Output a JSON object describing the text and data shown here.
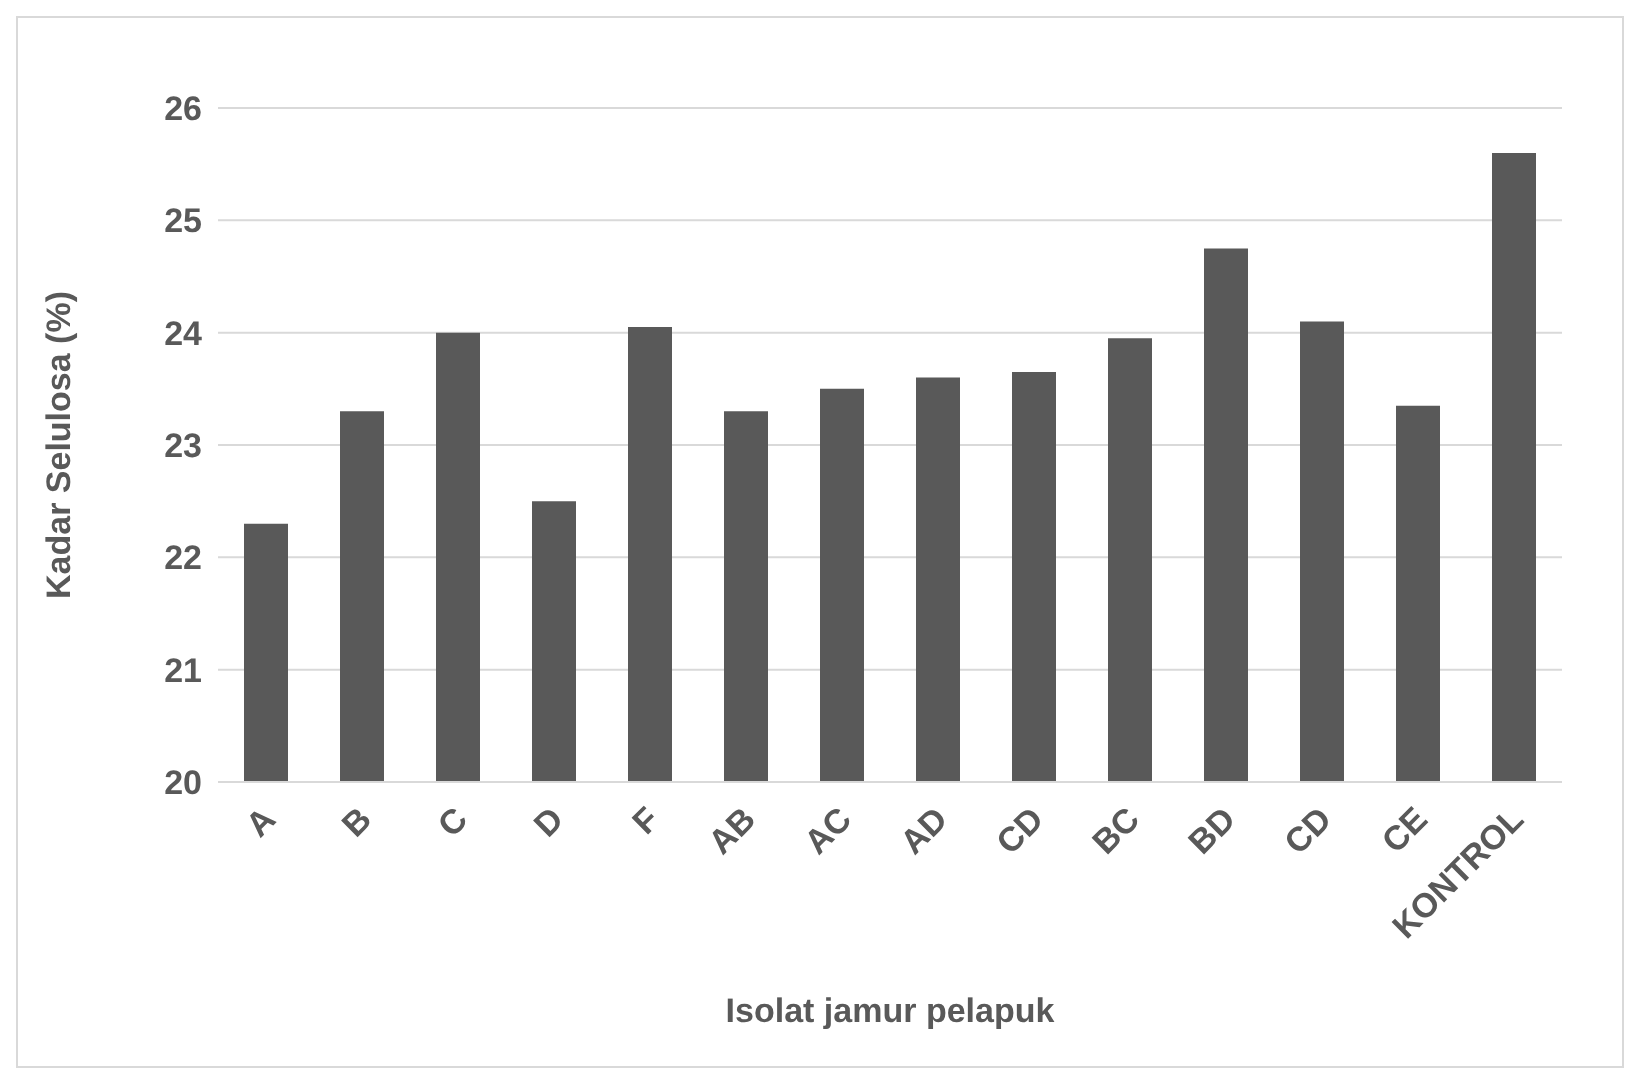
{
  "chart_data": {
    "type": "bar",
    "xlabel": "Isolat jamur pelapuk",
    "ylabel": "Kadar Selulosa (%)",
    "categories": [
      "A",
      "B",
      "C",
      "D",
      "F",
      "AB",
      "AC",
      "AD",
      "CD",
      "BC",
      "BD",
      "CD",
      "CE",
      "KONTROL"
    ],
    "values": [
      22.3,
      23.3,
      24.0,
      22.5,
      24.05,
      23.3,
      23.5,
      23.6,
      23.65,
      23.95,
      24.75,
      24.1,
      23.35,
      25.6
    ],
    "color": "#595959",
    "ylim": [
      20,
      26
    ],
    "yticks": [
      20,
      21,
      22,
      23,
      24,
      25,
      26
    ],
    "grid": "y"
  }
}
